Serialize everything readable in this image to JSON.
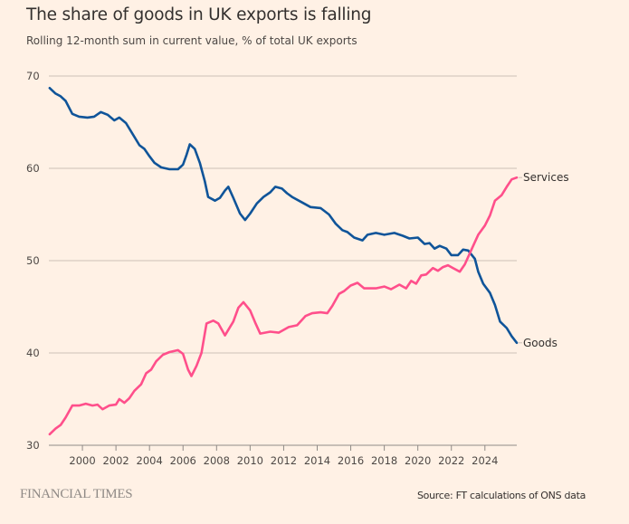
{
  "header": {
    "title": "The share of goods in UK exports is falling",
    "subtitle": "Rolling 12-month sum in current value, % of total UK exports"
  },
  "footer": {
    "logo": "FINANCIAL TIMES",
    "source": "Source: FT calculations of ONS data"
  },
  "chart_data": {
    "type": "line",
    "title": "The share of goods in UK exports is falling",
    "subtitle": "Rolling 12-month sum in current value, % of total UK exports",
    "xlabel": "",
    "ylabel": "",
    "xlim": [
      1998.0,
      2025.9
    ],
    "ylim": [
      30,
      70
    ],
    "yticks": [
      30,
      40,
      50,
      60,
      70
    ],
    "xticks": [
      2000,
      2002,
      2004,
      2006,
      2008,
      2010,
      2012,
      2014,
      2016,
      2018,
      2020,
      2022,
      2024
    ],
    "grid": "horizontal",
    "legend": "direct labels at line ends (right)",
    "colors": {
      "goods": "#0f5499",
      "services": "#ff4f8b",
      "grid": "#ccc1b7",
      "axis": "#8f8a86"
    },
    "series": [
      {
        "name": "Goods",
        "color": "#0f5499",
        "x": [
          1998.05,
          1998.4,
          1998.7,
          1999.0,
          1999.4,
          1999.8,
          2000.3,
          2000.7,
          2001.1,
          2001.5,
          2001.9,
          2002.2,
          2002.6,
          2003.0,
          2003.4,
          2003.7,
          2004.0,
          2004.3,
          2004.7,
          2005.2,
          2005.7,
          2006.0,
          2006.2,
          2006.4,
          2006.7,
          2007.0,
          2007.3,
          2007.5,
          2007.9,
          2008.2,
          2008.5,
          2008.7,
          2009.0,
          2009.4,
          2009.7,
          2010.0,
          2010.4,
          2010.8,
          2011.2,
          2011.5,
          2011.9,
          2012.2,
          2012.5,
          2013.1,
          2013.6,
          2014.2,
          2014.7,
          2015.1,
          2015.5,
          2015.8,
          2016.2,
          2016.7,
          2017.0,
          2017.5,
          2018.0,
          2018.6,
          2019.1,
          2019.5,
          2020.0,
          2020.4,
          2020.7,
          2021.0,
          2021.3,
          2021.7,
          2022.0,
          2022.4,
          2022.7,
          2023.0,
          2023.4,
          2023.6,
          2023.9,
          2024.3,
          2024.6,
          2024.9,
          2025.3,
          2025.6,
          2025.9,
          2026.2
        ],
        "values": [
          68.7,
          68.1,
          67.8,
          67.3,
          65.9,
          65.6,
          65.5,
          65.6,
          66.1,
          65.8,
          65.2,
          65.5,
          64.9,
          63.7,
          62.5,
          62.1,
          61.3,
          60.6,
          60.1,
          59.9,
          59.9,
          60.4,
          61.4,
          62.6,
          62.1,
          60.6,
          58.6,
          56.9,
          56.5,
          56.8,
          57.6,
          58.0,
          56.8,
          55.1,
          54.4,
          55.1,
          56.2,
          56.9,
          57.4,
          58.0,
          57.8,
          57.3,
          56.9,
          56.3,
          55.8,
          55.7,
          55.0,
          54.0,
          53.3,
          53.1,
          52.5,
          52.2,
          52.8,
          53.0,
          52.8,
          53.0,
          52.7,
          52.4,
          52.5,
          51.8,
          51.9,
          51.3,
          51.6,
          51.3,
          50.6,
          50.6,
          51.2,
          51.1,
          50.2,
          48.8,
          47.5,
          46.5,
          45.2,
          43.4,
          42.7,
          41.8,
          41.1,
          41.1
        ]
      },
      {
        "name": "Services",
        "color": "#ff4f8b",
        "x": [
          1998.05,
          1998.4,
          1998.7,
          1999.0,
          1999.4,
          1999.8,
          2000.2,
          2000.6,
          2000.9,
          2001.2,
          2001.6,
          2002.0,
          2002.2,
          2002.5,
          2002.8,
          2003.1,
          2003.5,
          2003.8,
          2004.1,
          2004.4,
          2004.8,
          2005.2,
          2005.7,
          2006.0,
          2006.3,
          2006.5,
          2006.8,
          2007.1,
          2007.4,
          2007.8,
          2008.1,
          2008.5,
          2009.0,
          2009.3,
          2009.6,
          2010.0,
          2010.3,
          2010.6,
          2011.2,
          2011.7,
          2012.3,
          2012.8,
          2013.3,
          2013.7,
          2014.2,
          2014.6,
          2014.9,
          2015.3,
          2015.6,
          2016.0,
          2016.4,
          2016.8,
          2017.1,
          2017.5,
          2018.0,
          2018.4,
          2018.9,
          2019.3,
          2019.6,
          2019.9,
          2020.2,
          2020.5,
          2020.9,
          2021.2,
          2021.5,
          2021.8,
          2022.1,
          2022.5,
          2022.8,
          2023.0,
          2023.3,
          2023.6,
          2024.0,
          2024.3,
          2024.6,
          2025.0,
          2025.3,
          2025.6,
          2025.9
        ],
        "values": [
          31.2,
          31.8,
          32.2,
          33.0,
          34.3,
          34.3,
          34.5,
          34.3,
          34.4,
          33.9,
          34.3,
          34.4,
          35.0,
          34.6,
          35.1,
          35.9,
          36.6,
          37.8,
          38.2,
          39.1,
          39.8,
          40.1,
          40.3,
          39.9,
          38.2,
          37.5,
          38.6,
          40.0,
          43.2,
          43.5,
          43.2,
          41.9,
          43.4,
          44.9,
          45.5,
          44.6,
          43.3,
          42.1,
          42.3,
          42.2,
          42.8,
          43.0,
          44.0,
          44.3,
          44.4,
          44.3,
          45.1,
          46.4,
          46.7,
          47.3,
          47.6,
          47.0,
          47.0,
          47.0,
          47.2,
          46.9,
          47.4,
          47.0,
          47.8,
          47.5,
          48.4,
          48.5,
          49.2,
          48.9,
          49.3,
          49.5,
          49.2,
          48.8,
          49.6,
          50.4,
          51.6,
          52.8,
          53.8,
          54.9,
          56.5,
          57.1,
          58.0,
          58.8,
          59.0
        ]
      }
    ]
  }
}
